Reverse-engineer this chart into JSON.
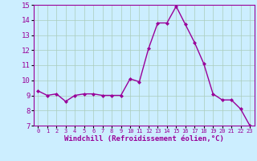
{
  "x": [
    0,
    1,
    2,
    3,
    4,
    5,
    6,
    7,
    8,
    9,
    10,
    11,
    12,
    13,
    14,
    15,
    16,
    17,
    18,
    19,
    20,
    21,
    22,
    23
  ],
  "y": [
    9.3,
    9.0,
    9.1,
    8.6,
    9.0,
    9.1,
    9.1,
    9.0,
    9.0,
    9.0,
    10.1,
    9.9,
    12.1,
    13.8,
    13.8,
    14.9,
    13.7,
    12.5,
    11.1,
    9.1,
    8.7,
    8.7,
    8.1,
    7.0
  ],
  "line_color": "#990099",
  "marker": "D",
  "marker_size": 2.0,
  "line_width": 1.0,
  "bg_color": "#cceeff",
  "grid_color": "#aaccbb",
  "xlabel": "Windchill (Refroidissement éolien,°C)",
  "xlabel_color": "#990099",
  "tick_color": "#990099",
  "ylim": [
    7,
    15
  ],
  "yticks": [
    7,
    8,
    9,
    10,
    11,
    12,
    13,
    14,
    15
  ],
  "xlim": [
    -0.5,
    23.5
  ],
  "font_color": "#990099"
}
